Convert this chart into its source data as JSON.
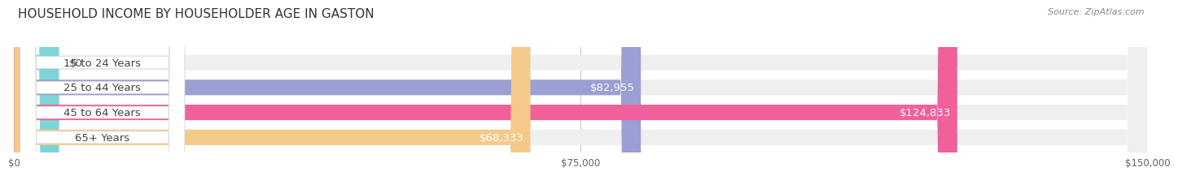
{
  "title": "HOUSEHOLD INCOME BY HOUSEHOLDER AGE IN GASTON",
  "source": "Source: ZipAtlas.com",
  "categories": [
    "15 to 24 Years",
    "25 to 44 Years",
    "45 to 64 Years",
    "65+ Years"
  ],
  "values": [
    0,
    82955,
    124833,
    68333
  ],
  "bar_colors": [
    "#7dd4d8",
    "#9b9fd4",
    "#f0609a",
    "#f5c98a"
  ],
  "xlim": [
    0,
    150000
  ],
  "xticks": [
    0,
    75000,
    150000
  ],
  "xticklabels": [
    "$0",
    "$75,000",
    "$150,000"
  ],
  "bar_height": 0.62,
  "label_fontsize": 9.5,
  "title_fontsize": 11,
  "bg_bar_color": "#efefef"
}
